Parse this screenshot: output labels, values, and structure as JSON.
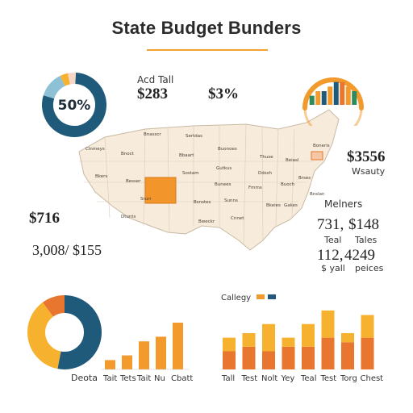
{
  "page": {
    "title": "State Budget Bunders"
  },
  "annotations": {
    "top_label": "Acd Tall",
    "top_value": "$283",
    "percent_label": "$3%",
    "right_value": "$3556",
    "right_sub": "Wsauty",
    "left_value": "$716",
    "left_value2": "3,008/ $155",
    "right_header": "Melners",
    "stat_a_value": "731,",
    "stat_b_value": "$148",
    "stat_a_label": "Teal",
    "stat_b_label": "Tales",
    "stat_c_value": "112,",
    "stat_d_value": "4249",
    "stat_c_label": "$ yall",
    "stat_d_label": "peices"
  },
  "map": {
    "state_labels": [
      "Clnmeys",
      "Bnoct",
      "Bnasscr",
      "Sertdas",
      "Bbaart",
      "Sostam",
      "Buonoes",
      "Gutkus",
      "Bunees",
      "Thuse",
      "Ddssh",
      "Fmms",
      "Beiasl",
      "Buoch",
      "Bkeies",
      "Gakes",
      "Sunns",
      "Bsnstes",
      "Cnnet",
      "Bweckr",
      "Dtunts",
      "Bkers",
      "Besser",
      "Srurr",
      "Brses",
      "Bnslan",
      "Boneris"
    ],
    "highlight_colors": [
      "#f2952b",
      "#e8762e"
    ]
  },
  "colors": {
    "navy": "#1f5a7a",
    "light_blue": "#8fc1d6",
    "orange": "#f29a2b",
    "orange_dark": "#e8762e",
    "amber": "#f6b22e",
    "green": "#3a9a6a",
    "map_fill": "#f7ecdc",
    "map_stroke": "#c9b9a3"
  },
  "chart_data": [
    {
      "type": "pie",
      "variant": "donut",
      "title": "",
      "center_label": "50%",
      "values": [
        79,
        13,
        4,
        4
      ],
      "colors": [
        "#1f5a7a",
        "#8fc1d6",
        "#f6b22e",
        "#f5d6c7"
      ]
    },
    {
      "type": "bar",
      "variant": "gauge-icon",
      "title": "",
      "values": [
        2,
        3,
        3,
        4,
        5,
        5,
        4,
        3
      ],
      "colors": [
        "#2f8a5c",
        "#f29a2b",
        "#1f5a7a",
        "#f29a2b",
        "#1f5a7a",
        "#e8762e",
        "#f29a2b",
        "#2f8a5c"
      ]
    },
    {
      "type": "pie",
      "variant": "donut",
      "title": "",
      "label": "Deota",
      "values": [
        53,
        37,
        10
      ],
      "colors": [
        "#1f5a7a",
        "#f6b22e",
        "#e8762e"
      ]
    },
    {
      "type": "bar",
      "title": "",
      "categories": [
        "Tait",
        "Tets",
        "Tait",
        "Nu",
        "Cbatt"
      ],
      "values": [
        2,
        3,
        6,
        7,
        10
      ],
      "colors": [
        "#f29a2b",
        "#f29a2b",
        "#f29a2b",
        "#f29a2b",
        "#f29a2b"
      ],
      "ylim": [
        0,
        10
      ]
    },
    {
      "type": "bar",
      "stacked": true,
      "title": "Callegy",
      "legend": [
        "",
        ""
      ],
      "legend_colors": [
        "#f29a2b",
        "#1f5a7a"
      ],
      "categories": [
        "Tall",
        "Test",
        "Nolt",
        "Yey",
        "Teal",
        "Test",
        "Torg",
        "Chest"
      ],
      "series": [
        {
          "values": [
            4,
            5,
            4,
            5,
            5,
            7,
            6,
            7
          ]
        },
        {
          "values": [
            3,
            3,
            6,
            2,
            5,
            6,
            2,
            5
          ]
        }
      ],
      "series_colors": [
        "#e8762e",
        "#f6b22e"
      ],
      "ylim": [
        0,
        16
      ]
    }
  ]
}
